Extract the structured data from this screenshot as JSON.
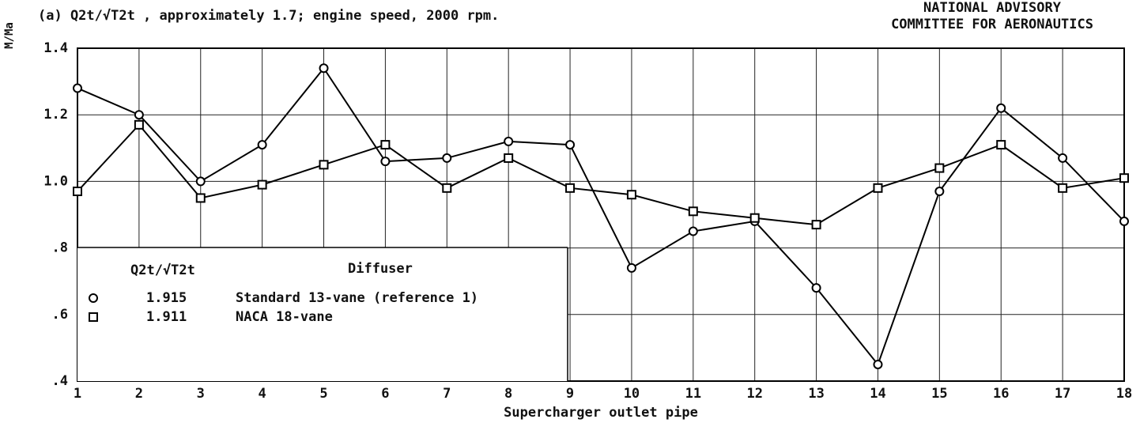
{
  "chart_data": {
    "type": "line",
    "title": "(a)  Q2t/√T2t , approximately 1.7; engine speed, 2000 rpm.",
    "corner_text": [
      "NATIONAL ADVISORY",
      "COMMITTEE FOR AERONAUTICS"
    ],
    "y_label": "M/Ma",
    "x_label": "Supercharger outlet pipe",
    "x": [
      1,
      2,
      3,
      4,
      5,
      6,
      7,
      8,
      9,
      10,
      11,
      12,
      13,
      14,
      15,
      16,
      17,
      18
    ],
    "xlim": [
      1,
      18
    ],
    "xticks": [
      1,
      2,
      3,
      4,
      5,
      6,
      7,
      8,
      9,
      10,
      11,
      12,
      13,
      14,
      15,
      16,
      17,
      18
    ],
    "ylim": [
      0.4,
      1.4
    ],
    "yticks": [
      {
        "value": 0.4,
        "label": ".4"
      },
      {
        "value": 0.6,
        "label": ".6"
      },
      {
        "value": 0.8,
        "label": ".8"
      },
      {
        "value": 1.0,
        "label": "1.0"
      },
      1.2,
      1.4
    ],
    "grid": true,
    "legend": {
      "position": "lower left",
      "column_headers": [
        "Q2t/√T2t",
        "Diffuser"
      ]
    },
    "series": [
      {
        "name": "Standard 13-vane (reference 1)",
        "legend_value": "1.915",
        "marker": "circle",
        "color": "#000000",
        "values": [
          1.28,
          1.2,
          1.0,
          1.11,
          1.34,
          1.06,
          1.07,
          1.12,
          1.11,
          0.74,
          0.85,
          0.88,
          0.68,
          0.45,
          0.97,
          1.22,
          1.07,
          0.88
        ]
      },
      {
        "name": "NACA 18-vane",
        "legend_value": "1.911",
        "marker": "square",
        "color": "#000000",
        "values": [
          0.97,
          1.17,
          0.95,
          0.99,
          1.05,
          1.11,
          0.98,
          1.07,
          0.98,
          0.96,
          0.91,
          0.89,
          0.87,
          0.98,
          1.04,
          1.11,
          0.98,
          1.01
        ]
      }
    ]
  }
}
